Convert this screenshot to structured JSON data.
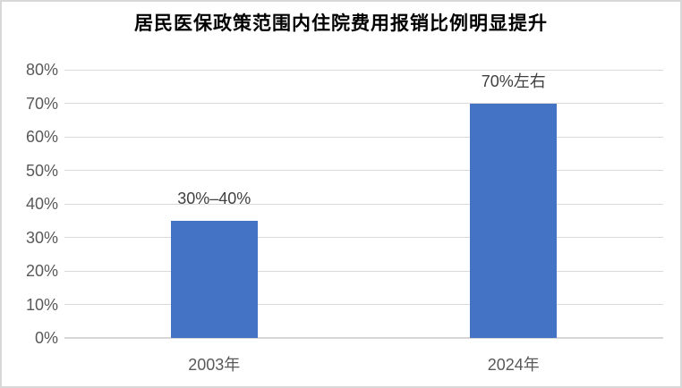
{
  "window": {
    "background": "#ffffff",
    "frame_border_color": "#d8d8d8"
  },
  "chart_data": {
    "type": "bar",
    "title": "居民医保政策范围内住院费用报销比例明显提升",
    "categories": [
      "2003年",
      "2024年"
    ],
    "values": [
      35,
      70
    ],
    "bar_labels": [
      "30%–40%",
      "70%左右"
    ],
    "y_tick_values": [
      0,
      10,
      20,
      30,
      40,
      50,
      60,
      70,
      80
    ],
    "y_tick_labels": [
      "0%",
      "10%",
      "20%",
      "30%",
      "40%",
      "50%",
      "60%",
      "70%",
      "80%"
    ],
    "ylim": [
      0,
      80
    ],
    "xlabel": "",
    "ylabel": "",
    "grid": true,
    "legend": "none",
    "bar_color": "#4472c4",
    "gridline_color": "#d9d9d9",
    "axis_line_color": "#d6d6d6",
    "tick_label_color": "#595959",
    "data_label_color": "#404040",
    "title_color": "#000000"
  }
}
